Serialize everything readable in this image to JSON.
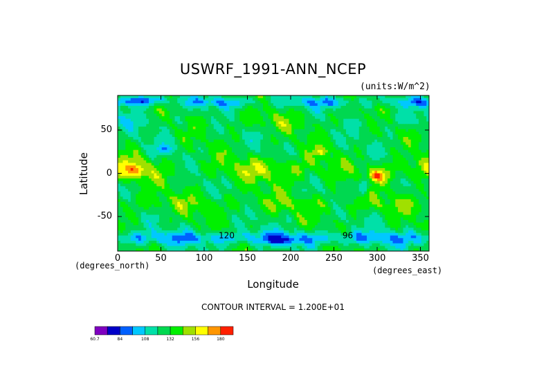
{
  "chart_data": {
    "type": "heatmap",
    "title": "USWRF_1991-ANN_NCEP",
    "units": "(units:W/m^2)",
    "xlabel": "Longitude",
    "ylabel": "Latitude",
    "x_unit_note": "(degrees_east)",
    "y_unit_note": "(degrees_north)",
    "xlim": [
      0,
      360
    ],
    "ylim": [
      -90,
      90
    ],
    "x_ticks": [
      "0",
      "50",
      "100",
      "150",
      "200",
      "250",
      "300",
      "350"
    ],
    "x_tick_values": [
      0,
      50,
      100,
      150,
      200,
      250,
      300,
      350
    ],
    "y_ticks": [
      "50",
      "0",
      "-50"
    ],
    "y_tick_values": [
      50,
      0,
      -50
    ],
    "contour_interval_text": "CONTOUR INTERVAL = 1.200E+01",
    "contour_labels": [
      {
        "text": "120",
        "lon": 126,
        "lat": -72
      },
      {
        "text": "96",
        "lon": 266,
        "lat": -72
      }
    ],
    "colorbar": {
      "labels": [
        "60.7",
        "84",
        "108",
        "132",
        "156",
        "180"
      ],
      "colors": [
        "#7f00c0",
        "#0000c8",
        "#0060ff",
        "#00c8ff",
        "#00e0a8",
        "#00d850",
        "#00f000",
        "#a0e000",
        "#ffff00",
        "#ff9600",
        "#ff2000"
      ]
    }
  }
}
